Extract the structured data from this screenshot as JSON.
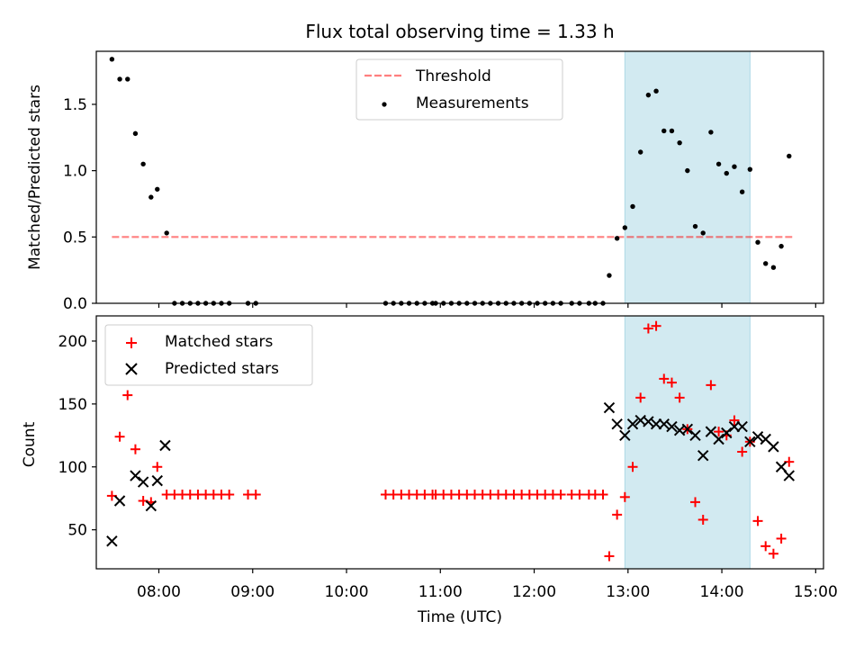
{
  "chart_data": [
    {
      "type": "scatter",
      "title": "Flux total observing time = 1.33 h",
      "ylabel": "Matched/Predicted stars",
      "xlabel": "",
      "xlim": [
        "07:20",
        "15:05"
      ],
      "ylim": [
        0,
        1.9
      ],
      "x_ticks": [
        "08:00",
        "09:00",
        "10:00",
        "11:00",
        "12:00",
        "13:00",
        "14:00",
        "15:00"
      ],
      "x_ticks_labeled": false,
      "y_ticks": [
        0.0,
        0.5,
        1.0,
        1.5
      ],
      "y_tick_labels": [
        "0.0",
        "0.5",
        "1.0",
        "1.5"
      ],
      "highlight_span": {
        "start": "12:58",
        "end": "14:18",
        "color": "#add8e6"
      },
      "legend_position": "upper center",
      "threshold": {
        "name": "Threshold",
        "value": 0.5,
        "x_start": "07:30",
        "x_end": "14:45",
        "color": "#ff0000",
        "style": "dashed"
      },
      "series": [
        {
          "name": "Measurements",
          "color": "#000000",
          "marker": "dot",
          "x": [
            "07:30",
            "07:35",
            "07:40",
            "07:45",
            "07:50",
            "07:55",
            "07:59",
            "08:05",
            "08:10",
            "08:15",
            "08:20",
            "08:25",
            "08:30",
            "08:35",
            "08:40",
            "08:45",
            "08:57",
            "09:02",
            "10:25",
            "10:30",
            "10:35",
            "10:40",
            "10:45",
            "10:50",
            "10:55",
            "10:57",
            "11:02",
            "11:07",
            "11:12",
            "11:17",
            "11:22",
            "11:27",
            "11:32",
            "11:37",
            "11:42",
            "11:47",
            "11:52",
            "11:57",
            "12:02",
            "12:07",
            "12:12",
            "12:17",
            "12:24",
            "12:29",
            "12:35",
            "12:39",
            "12:44",
            "12:48",
            "12:53",
            "12:58",
            "13:03",
            "13:08",
            "13:13",
            "13:18",
            "13:23",
            "13:28",
            "13:33",
            "13:38",
            "13:43",
            "13:48",
            "13:53",
            "13:58",
            "14:03",
            "14:08",
            "14:13",
            "14:18",
            "14:23",
            "14:28",
            "14:33",
            "14:38",
            "14:43"
          ],
          "values": [
            1.84,
            1.69,
            1.69,
            1.28,
            1.05,
            0.8,
            0.86,
            0.53,
            0,
            0,
            0,
            0,
            0,
            0,
            0,
            0,
            0,
            0,
            0,
            0,
            0,
            0,
            0,
            0,
            0,
            0,
            0,
            0,
            0,
            0,
            0,
            0,
            0,
            0,
            0,
            0,
            0,
            0,
            0,
            0,
            0,
            0,
            0,
            0,
            0,
            0,
            0,
            0.21,
            0.49,
            0.57,
            0.73,
            1.14,
            1.57,
            1.6,
            1.3,
            1.3,
            1.21,
            1.0,
            0.58,
            0.53,
            1.29,
            1.05,
            0.98,
            1.03,
            0.84,
            1.01,
            0.46,
            0.3,
            0.27,
            0.43,
            1.11
          ]
        }
      ]
    },
    {
      "type": "scatter",
      "title": "",
      "ylabel": "Count",
      "xlabel": "Time (UTC)",
      "xlim": [
        "07:20",
        "15:05"
      ],
      "ylim": [
        19,
        220
      ],
      "x_ticks": [
        "08:00",
        "09:00",
        "10:00",
        "11:00",
        "12:00",
        "13:00",
        "14:00",
        "15:00"
      ],
      "x_tick_labels": [
        "08:00",
        "09:00",
        "10:00",
        "11:00",
        "12:00",
        "13:00",
        "14:00",
        "15:00"
      ],
      "y_ticks": [
        50,
        100,
        150,
        200
      ],
      "y_tick_labels": [
        "50",
        "100",
        "150",
        "200"
      ],
      "highlight_span": {
        "start": "12:58",
        "end": "14:18",
        "color": "#add8e6"
      },
      "legend_position": "upper left",
      "series": [
        {
          "name": "Matched stars",
          "color": "#ff0000",
          "marker": "plus",
          "x": [
            "07:30",
            "07:35",
            "07:40",
            "07:45",
            "07:50",
            "07:55",
            "07:59",
            "08:05",
            "08:10",
            "08:15",
            "08:20",
            "08:25",
            "08:30",
            "08:35",
            "08:40",
            "08:45",
            "08:57",
            "09:02",
            "10:25",
            "10:30",
            "10:35",
            "10:40",
            "10:45",
            "10:50",
            "10:55",
            "10:57",
            "11:02",
            "11:07",
            "11:12",
            "11:17",
            "11:22",
            "11:27",
            "11:32",
            "11:37",
            "11:42",
            "11:47",
            "11:52",
            "11:57",
            "12:02",
            "12:07",
            "12:12",
            "12:17",
            "12:24",
            "12:29",
            "12:35",
            "12:39",
            "12:44",
            "12:48",
            "12:53",
            "12:58",
            "13:03",
            "13:08",
            "13:13",
            "13:18",
            "13:23",
            "13:28",
            "13:33",
            "13:38",
            "13:43",
            "13:48",
            "13:53",
            "13:58",
            "14:03",
            "14:08",
            "14:13",
            "14:18",
            "14:23",
            "14:28",
            "14:33",
            "14:38",
            "14:43"
          ],
          "values": [
            77,
            124,
            157,
            114,
            73,
            72,
            100,
            78,
            78,
            78,
            78,
            78,
            78,
            78,
            78,
            78,
            78,
            78,
            78,
            78,
            78,
            78,
            78,
            78,
            78,
            78,
            78,
            78,
            78,
            78,
            78,
            78,
            78,
            78,
            78,
            78,
            78,
            78,
            78,
            78,
            78,
            78,
            78,
            78,
            78,
            78,
            78,
            29,
            62,
            76,
            100,
            155,
            210,
            212,
            170,
            167,
            155,
            130,
            72,
            58,
            165,
            128,
            125,
            137,
            112,
            120,
            57,
            37,
            31,
            43,
            104
          ]
        },
        {
          "name": "Predicted stars",
          "color": "#000000",
          "marker": "x",
          "x": [
            "07:30",
            "07:35",
            "07:45",
            "07:50",
            "07:55",
            "07:59",
            "08:04",
            "12:48",
            "12:53",
            "12:58",
            "13:03",
            "13:08",
            "13:13",
            "13:18",
            "13:23",
            "13:28",
            "13:33",
            "13:38",
            "13:43",
            "13:48",
            "13:53",
            "13:58",
            "14:03",
            "14:08",
            "14:13",
            "14:18",
            "14:23",
            "14:28",
            "14:33",
            "14:38",
            "14:43"
          ],
          "values": [
            41,
            73,
            93,
            88,
            69,
            89,
            117,
            147,
            134,
            125,
            134,
            137,
            136,
            134,
            134,
            132,
            129,
            130,
            125,
            109,
            128,
            122,
            127,
            132,
            132,
            120,
            124,
            122,
            116,
            100,
            93
          ]
        }
      ]
    }
  ]
}
